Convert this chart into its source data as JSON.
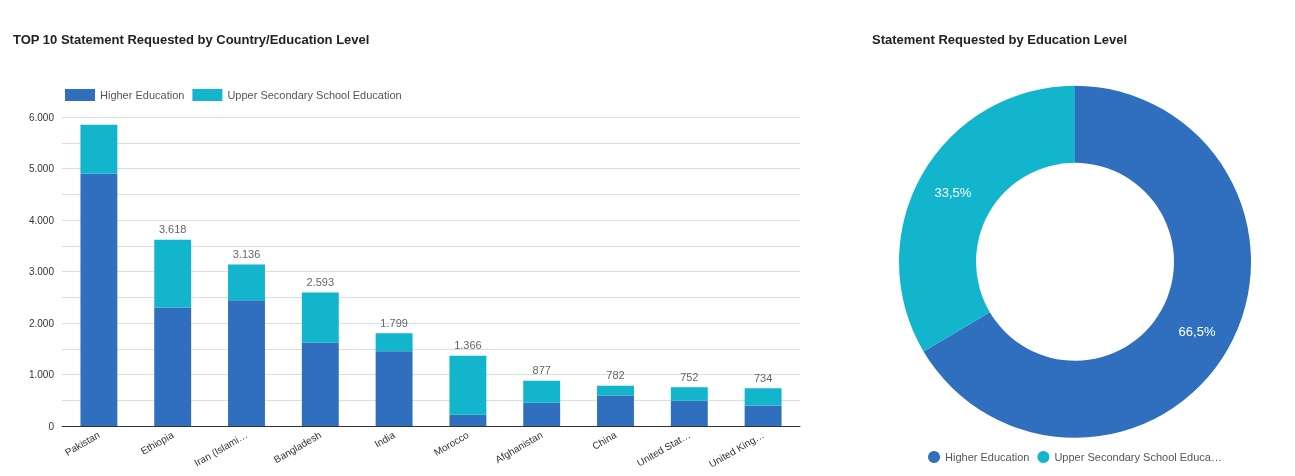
{
  "chart_data": [
    {
      "type": "bar",
      "title": "TOP 10 Statement Requested by Country/Education Level",
      "categories": [
        "Pakistan",
        "Ethiopia",
        "Iran (Islami…",
        "Bangladesh",
        "India",
        "Morocco",
        "Afghanistan",
        "China",
        "United Stat…",
        "United King…"
      ],
      "stacked": true,
      "series": [
        {
          "name": "Higher Education",
          "color": "#2f6fbd",
          "values": [
            4900,
            2300,
            2440,
            1620,
            1450,
            220,
            450,
            590,
            490,
            400
          ]
        },
        {
          "name": "Upper Secondary School Education",
          "color": "#12b5cb",
          "values": [
            950,
            1318,
            696,
            973,
            349,
            1146,
            427,
            192,
            262,
            334
          ]
        }
      ],
      "totals": [
        null,
        "3.618",
        "3.136",
        "2.593",
        "1.799",
        "1.366",
        "877",
        "782",
        "752",
        "734"
      ],
      "ylim": [
        0,
        6000
      ],
      "yticks": [
        {
          "value": 0,
          "label": "0"
        },
        {
          "value": 500,
          "label": null
        },
        {
          "value": 1000,
          "label": "1.000"
        },
        {
          "value": 1500,
          "label": null
        },
        {
          "value": 2000,
          "label": "2.000"
        },
        {
          "value": 2500,
          "label": null
        },
        {
          "value": 3000,
          "label": "3.000"
        },
        {
          "value": 3500,
          "label": null
        },
        {
          "value": 4000,
          "label": "4.000"
        },
        {
          "value": 4500,
          "label": null
        },
        {
          "value": 5000,
          "label": "5.000"
        },
        {
          "value": 5500,
          "label": null
        },
        {
          "value": 6000,
          "label": "6.000"
        }
      ],
      "grid": "y",
      "legend": "top left"
    },
    {
      "type": "donut",
      "title": "Statement Requested by Education Level",
      "categories": [
        "Higher Education",
        "Upper Secondary School Educa…"
      ],
      "values": [
        66.5,
        33.5
      ],
      "value_labels": [
        "66,5%",
        "33,5%"
      ],
      "colors": [
        "#2f6fbd",
        "#12b5cb"
      ],
      "legend": "bottom"
    }
  ]
}
